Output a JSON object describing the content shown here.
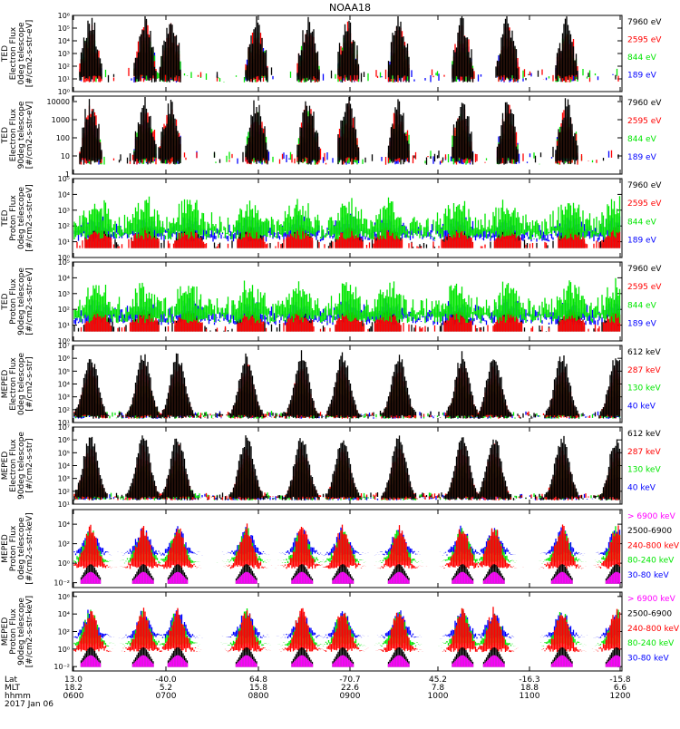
{
  "title": "NOAA18",
  "colors": {
    "black": "#000000",
    "red": "#ff0000",
    "green": "#00e600",
    "blue": "#0000ff",
    "magenta": "#ff00ff"
  },
  "chart_data": [
    {
      "type": "scatter",
      "log_y": true,
      "ylabel": [
        "TED",
        "Electron Flux",
        "0deg telescope",
        "[#/cm2-s-str-eV]"
      ],
      "yticks": [
        "10⁰",
        "10¹",
        "10²",
        "10³",
        "10⁴",
        "10⁵",
        "10⁶"
      ],
      "ylim_exp": [
        0,
        6
      ],
      "series": [
        {
          "name": "7960 eV",
          "color": "black"
        },
        {
          "name": "2595 eV",
          "color": "red"
        },
        {
          "name": "844 eV",
          "color": "green"
        },
        {
          "name": "189 eV",
          "color": "blue"
        }
      ]
    },
    {
      "type": "scatter",
      "log_y": true,
      "ylabel": [
        "TED",
        "Electron Flux",
        "90deg telescope",
        "[#/cm2-s-str-eV]"
      ],
      "yticks": [
        "1",
        "10",
        "100",
        "1000",
        "10000"
      ],
      "ylim_exp": [
        0,
        4.3
      ],
      "series": [
        {
          "name": "7960 eV",
          "color": "black"
        },
        {
          "name": "2595 eV",
          "color": "red"
        },
        {
          "name": "844 eV",
          "color": "green"
        },
        {
          "name": "189 eV",
          "color": "blue"
        }
      ]
    },
    {
      "type": "scatter",
      "log_y": true,
      "ylabel": [
        "TED",
        "Proton Flux",
        "0deg telescope",
        "[#/cm2-s-str-eV]"
      ],
      "yticks": [
        "10⁰",
        "10¹",
        "10²",
        "10³",
        "10⁴",
        "10⁵"
      ],
      "ylim_exp": [
        0,
        5
      ],
      "series": [
        {
          "name": "7960 eV",
          "color": "black"
        },
        {
          "name": "2595 eV",
          "color": "red"
        },
        {
          "name": "844 eV",
          "color": "green"
        },
        {
          "name": "189 eV",
          "color": "blue"
        }
      ]
    },
    {
      "type": "scatter",
      "log_y": true,
      "ylabel": [
        "TED",
        "Proton Flux",
        "90deg telescope",
        "[#/cm2-s-str-eV]"
      ],
      "yticks": [
        "10⁰",
        "10¹",
        "10²",
        "10³",
        "10⁴",
        "10⁵"
      ],
      "ylim_exp": [
        0,
        5
      ],
      "series": [
        {
          "name": "7960 eV",
          "color": "black"
        },
        {
          "name": "2595 eV",
          "color": "red"
        },
        {
          "name": "844 eV",
          "color": "green"
        },
        {
          "name": "189 eV",
          "color": "blue"
        }
      ]
    },
    {
      "type": "scatter",
      "log_y": true,
      "ylabel": [
        "MEPED",
        "Electron Flux",
        "0deg telescope",
        "[#/cm2-s-str]"
      ],
      "yticks": [
        "10¹",
        "10²",
        "10³",
        "10⁴",
        "10⁵",
        "10⁶",
        "10⁷"
      ],
      "ylim_exp": [
        1,
        7
      ],
      "series": [
        {
          "name": "612 keV",
          "color": "black"
        },
        {
          "name": "287 keV",
          "color": "red"
        },
        {
          "name": "130 keV",
          "color": "green"
        },
        {
          "name": "40 keV",
          "color": "blue"
        }
      ]
    },
    {
      "type": "scatter",
      "log_y": true,
      "ylabel": [
        "MEPED",
        "Electron Flux",
        "90deg telescope",
        "[#/cm2-s-str]"
      ],
      "yticks": [
        "10¹",
        "10²",
        "10³",
        "10⁴",
        "10⁵",
        "10⁶",
        "10⁷"
      ],
      "ylim_exp": [
        1,
        7
      ],
      "series": [
        {
          "name": "612 keV",
          "color": "black"
        },
        {
          "name": "287 keV",
          "color": "red"
        },
        {
          "name": "130 keV",
          "color": "green"
        },
        {
          "name": "40 keV",
          "color": "blue"
        }
      ]
    },
    {
      "type": "scatter",
      "log_y": true,
      "ylabel": [
        "MEPED",
        "Proton Flux",
        "0deg telescope",
        "[#/cm2-s-str-keV]"
      ],
      "yticks": [
        "10⁻²",
        "10⁰",
        "10²",
        "10⁴"
      ],
      "ylim_exp": [
        -2.5,
        5.5
      ],
      "series": [
        {
          "name": "> 6900 keV",
          "color": "magenta"
        },
        {
          "name": "2500-6900",
          "color": "black"
        },
        {
          "name": "240-800 keV",
          "color": "red"
        },
        {
          "name": "80-240 keV",
          "color": "green"
        },
        {
          "name": "30-80 keV",
          "color": "blue"
        }
      ]
    },
    {
      "type": "scatter",
      "log_y": true,
      "ylabel": [
        "MEPED",
        "Proton Flux",
        "90deg telescope",
        "[#/cm2-s-str-keV]"
      ],
      "yticks": [
        "10⁻²",
        "10⁰",
        "10²",
        "10⁴",
        "10⁶"
      ],
      "ylim_exp": [
        -2.5,
        6.5
      ],
      "series": [
        {
          "name": "> 6900 keV",
          "color": "magenta"
        },
        {
          "name": "2500-6900",
          "color": "black"
        },
        {
          "name": "240-800 keV",
          "color": "red"
        },
        {
          "name": "80-240 keV",
          "color": "green"
        },
        {
          "name": "30-80 keV",
          "color": "blue"
        }
      ]
    }
  ],
  "x_axis": {
    "row_labels": [
      "Lat",
      "MLT",
      "hhmm",
      "2017 Jan 06"
    ],
    "ticks": [
      {
        "lat": "13.0",
        "mlt": "18.2",
        "hhmm": "0600"
      },
      {
        "lat": "-40.0",
        "mlt": "5.2",
        "hhmm": "0700"
      },
      {
        "lat": "64.8",
        "mlt": "15.8",
        "hhmm": "0800"
      },
      {
        "lat": "-70.7",
        "mlt": "22.6",
        "hhmm": "0900"
      },
      {
        "lat": "45.2",
        "mlt": "7.8",
        "hhmm": "1000"
      },
      {
        "lat": "-16.3",
        "mlt": "18.8",
        "hhmm": "1100"
      },
      {
        "lat": "-15.8",
        "mlt": "6.6",
        "hhmm": "1200"
      }
    ]
  }
}
